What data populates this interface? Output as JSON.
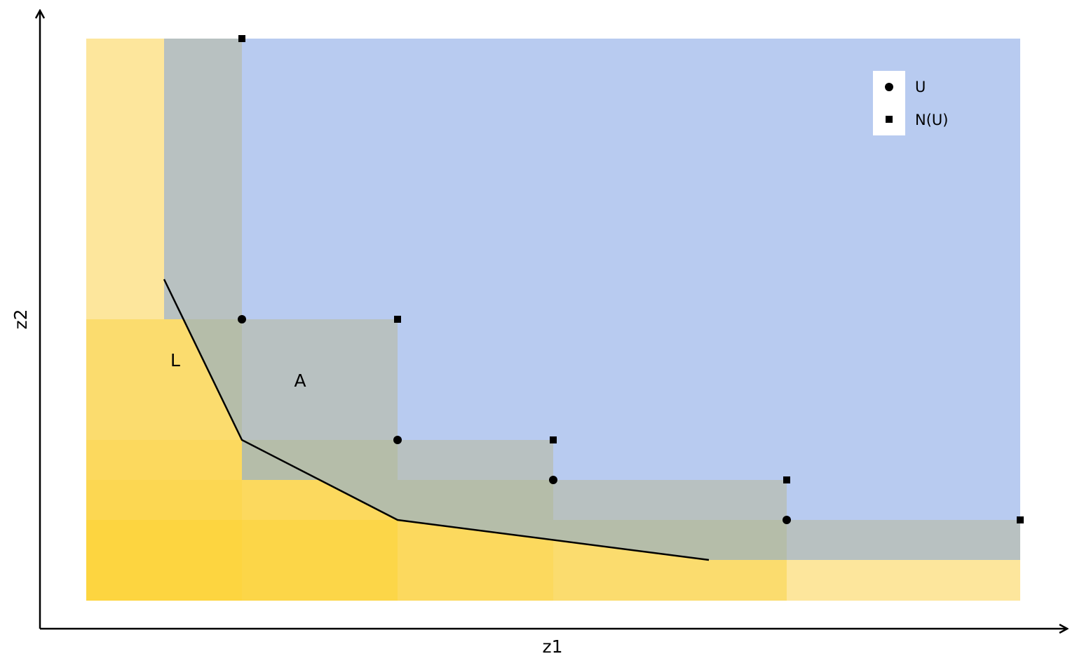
{
  "axes": {
    "x_label": "z1",
    "y_label": "z2"
  },
  "labels": {
    "lower_region": "L",
    "upper_region": "A"
  },
  "legend": {
    "position": "top-right",
    "items": [
      {
        "marker": "circle",
        "label": "U"
      },
      {
        "marker": "square",
        "label": "N(U)"
      }
    ]
  },
  "colors": {
    "upper_region": "#b8cbf0",
    "overlap_region": "#b8c1c1",
    "lower_light": "#fde69c",
    "lower_dark": "#fdd53e",
    "line": "#000000"
  },
  "points_u": [
    [
      2,
      7
    ],
    [
      4,
      4
    ],
    [
      6,
      3
    ],
    [
      9,
      2
    ]
  ],
  "points_nu": [
    [
      2,
      14
    ],
    [
      4,
      7
    ],
    [
      6,
      4
    ],
    [
      9,
      3
    ],
    [
      12,
      2
    ]
  ],
  "lower_bound_line": [
    [
      1,
      8
    ],
    [
      2,
      4
    ],
    [
      4,
      2
    ],
    [
      8,
      1
    ]
  ]
}
